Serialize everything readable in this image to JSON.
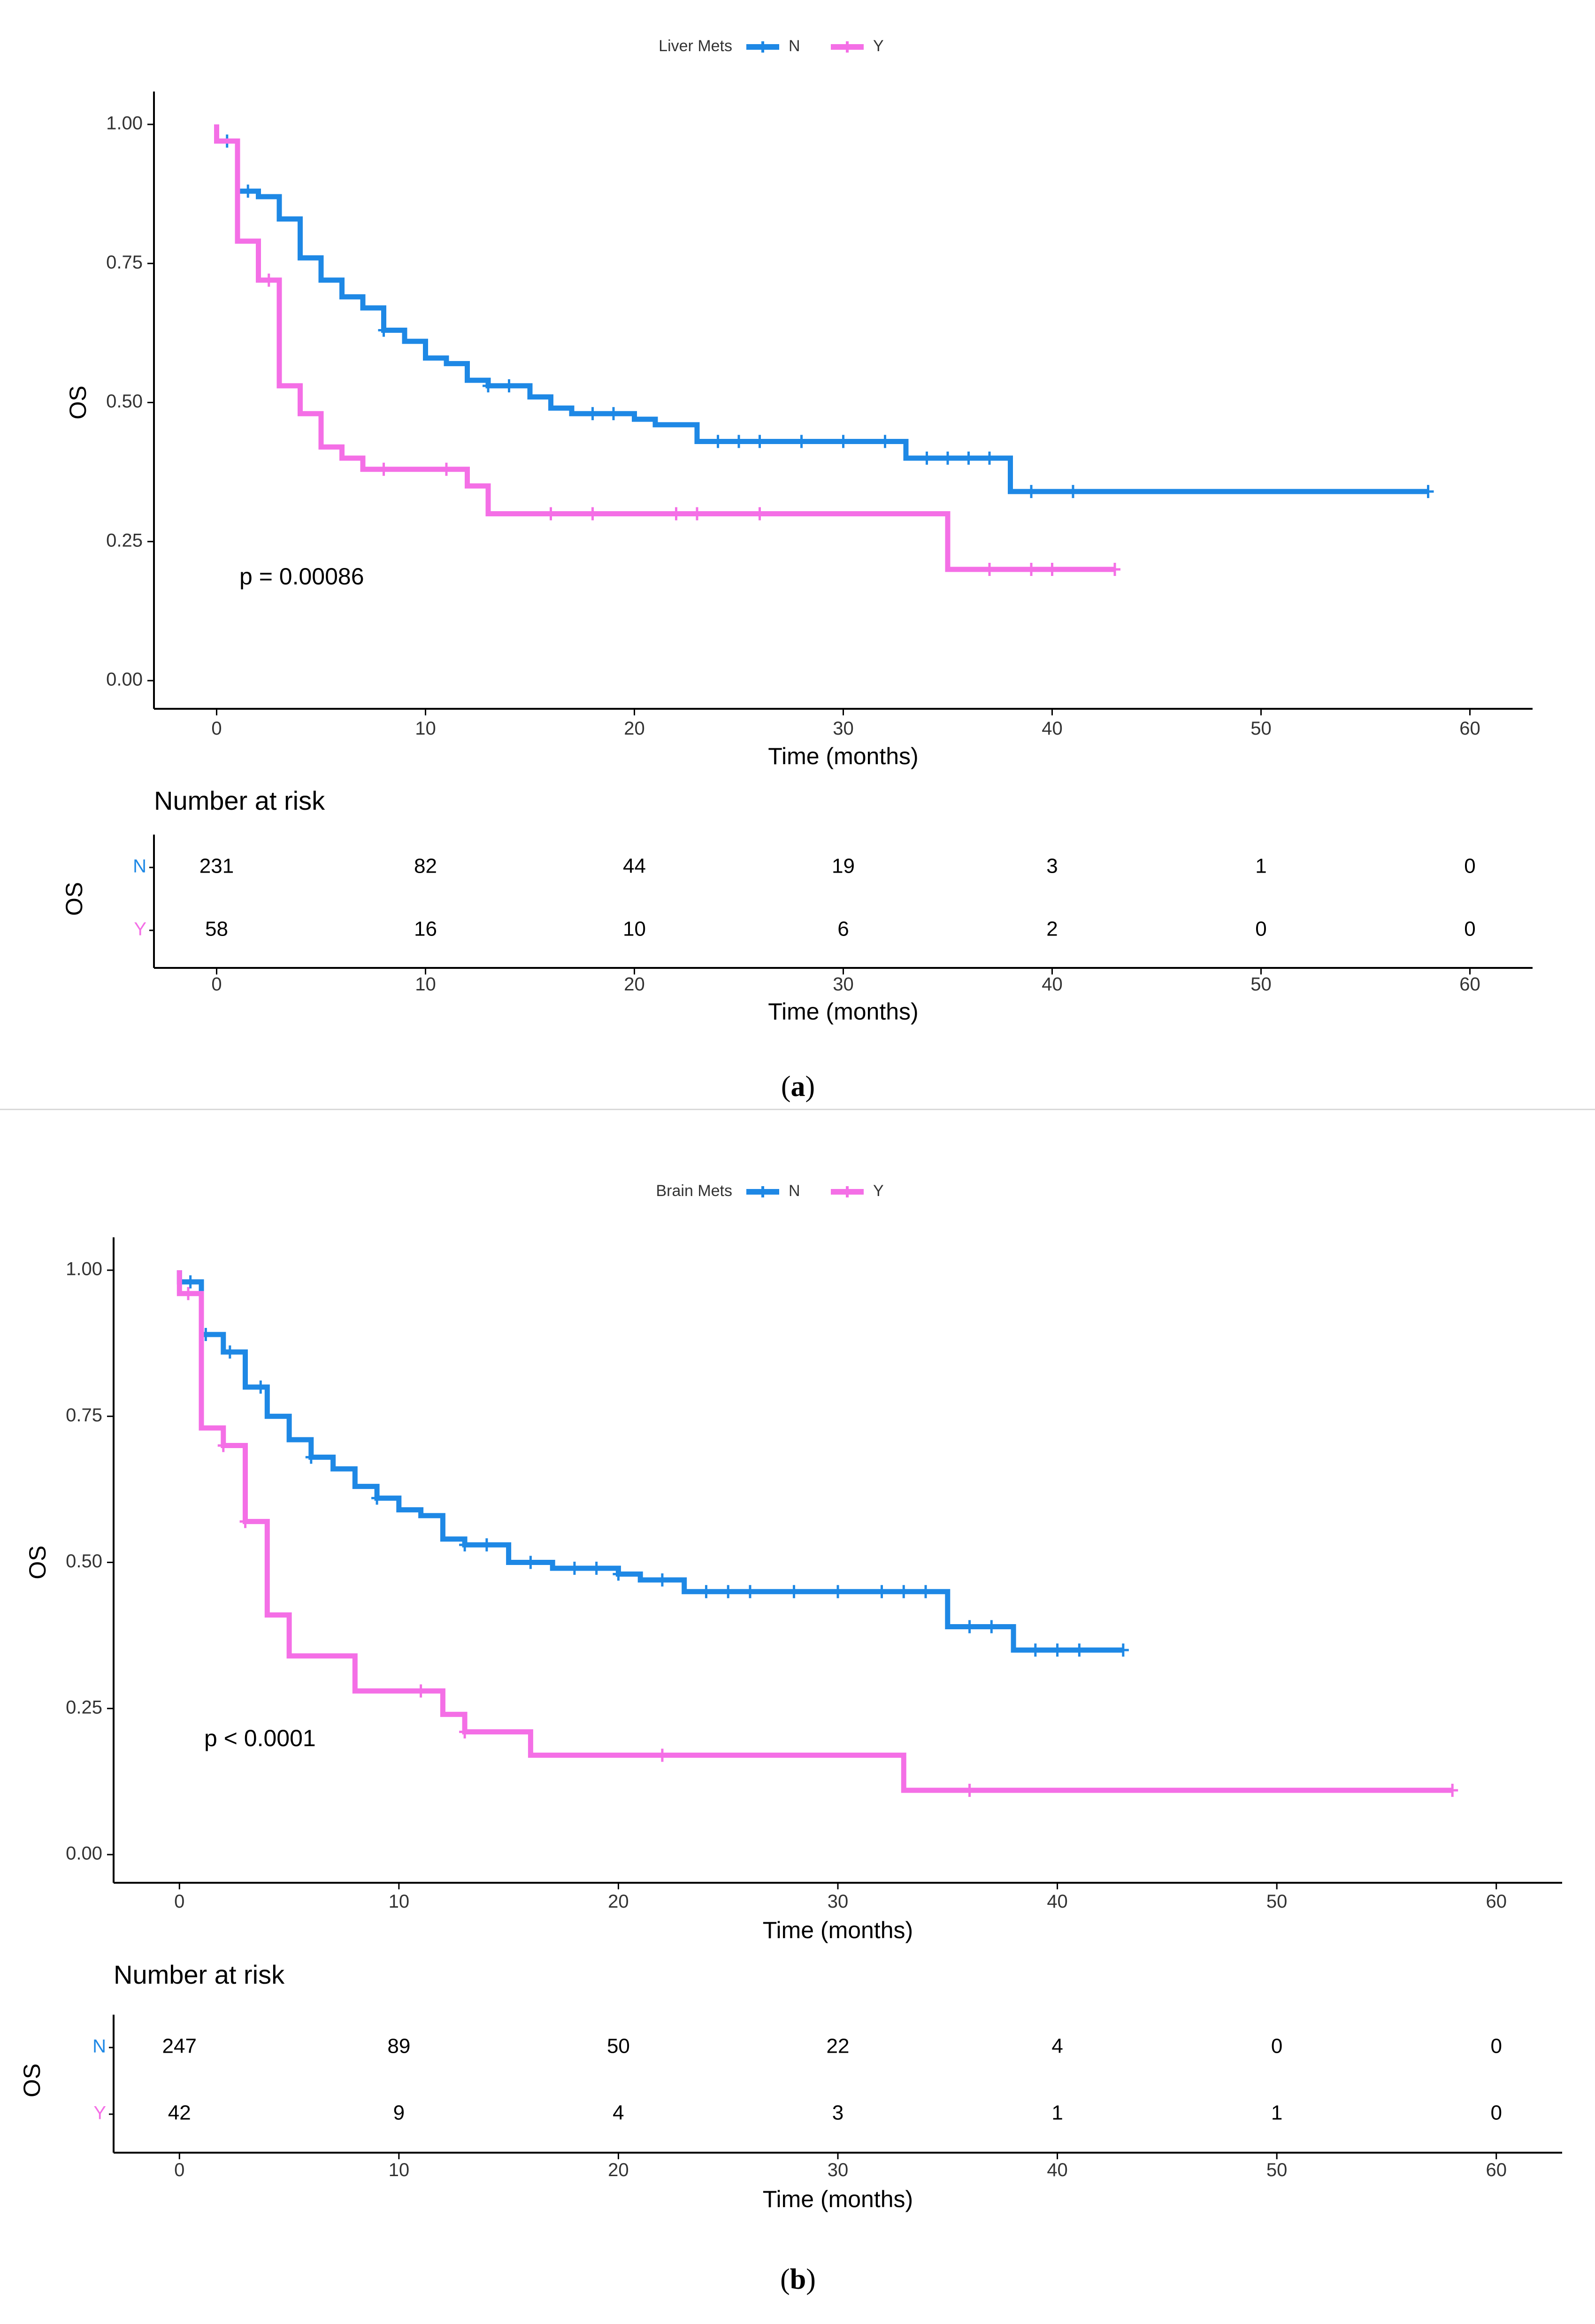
{
  "panels": [
    {
      "id": "a",
      "caption": "a",
      "legend": {
        "title": "Liver Mets",
        "items": [
          "N",
          "Y"
        ]
      },
      "p_value": "p = 0.00086",
      "risk_table": {
        "title": "Number at risk",
        "ylabel": "OS",
        "xlabel": "Time (months)",
        "rows": [
          {
            "strata": "N",
            "counts": [
              "231",
              "82",
              "44",
              "19",
              "3",
              "1",
              "0"
            ]
          },
          {
            "strata": "Y",
            "counts": [
              "58",
              "16",
              "10",
              "6",
              "2",
              "0",
              "0"
            ]
          }
        ]
      }
    },
    {
      "id": "b",
      "caption": "b",
      "legend": {
        "title": "Brain Mets",
        "items": [
          "N",
          "Y"
        ]
      },
      "p_value": "p < 0.0001",
      "risk_table": {
        "title": "Number at risk",
        "ylabel": "OS",
        "xlabel": "Time (months)",
        "rows": [
          {
            "strata": "N",
            "counts": [
              "247",
              "89",
              "50",
              "22",
              "4",
              "0",
              "0"
            ]
          },
          {
            "strata": "Y",
            "counts": [
              "42",
              "9",
              "4",
              "3",
              "1",
              "1",
              "0"
            ]
          }
        ]
      }
    }
  ],
  "colors": {
    "N": "#1e88e5",
    "Y": "#f46fe6",
    "axis": "#000000",
    "text": "#333333"
  },
  "chart_data": [
    {
      "type": "line",
      "subtype": "kaplan-meier",
      "title": "",
      "xlabel": "Time (months)",
      "ylabel": "OS",
      "xlim": [
        -3,
        63
      ],
      "ylim": [
        0,
        1
      ],
      "xticks": [
        0,
        10,
        20,
        30,
        40,
        50,
        60
      ],
      "yticks": [
        "0.00",
        "0.25",
        "0.50",
        "0.75",
        "1.00"
      ],
      "series": [
        {
          "name": "N",
          "steps": [
            [
              0,
              1.0
            ],
            [
              0,
              0.97
            ],
            [
              1,
              0.97
            ],
            [
              1,
              0.88
            ],
            [
              2,
              0.88
            ],
            [
              2,
              0.87
            ],
            [
              3,
              0.87
            ],
            [
              3,
              0.83
            ],
            [
              4,
              0.83
            ],
            [
              4,
              0.76
            ],
            [
              5,
              0.76
            ],
            [
              5,
              0.72
            ],
            [
              6,
              0.72
            ],
            [
              6,
              0.69
            ],
            [
              7,
              0.69
            ],
            [
              7,
              0.67
            ],
            [
              8,
              0.67
            ],
            [
              8,
              0.63
            ],
            [
              9,
              0.63
            ],
            [
              9,
              0.61
            ],
            [
              10,
              0.61
            ],
            [
              10,
              0.58
            ],
            [
              11,
              0.58
            ],
            [
              11,
              0.57
            ],
            [
              12,
              0.57
            ],
            [
              12,
              0.54
            ],
            [
              13,
              0.54
            ],
            [
              13,
              0.53
            ],
            [
              15,
              0.53
            ],
            [
              15,
              0.51
            ],
            [
              16,
              0.51
            ],
            [
              16,
              0.49
            ],
            [
              17,
              0.49
            ],
            [
              17,
              0.48
            ],
            [
              20,
              0.48
            ],
            [
              20,
              0.47
            ],
            [
              21,
              0.47
            ],
            [
              21,
              0.46
            ],
            [
              23,
              0.46
            ],
            [
              23,
              0.43
            ],
            [
              33,
              0.43
            ],
            [
              33,
              0.4
            ],
            [
              38,
              0.4
            ],
            [
              38,
              0.34
            ],
            [
              58,
              0.34
            ]
          ],
          "censor_x": [
            0.5,
            1.5,
            8,
            13,
            14,
            18,
            19,
            24,
            25,
            26,
            28,
            30,
            32,
            34,
            35,
            36,
            37,
            39,
            41,
            58
          ]
        },
        {
          "name": "Y",
          "steps": [
            [
              0,
              1.0
            ],
            [
              0,
              0.97
            ],
            [
              1,
              0.97
            ],
            [
              1,
              0.79
            ],
            [
              2,
              0.79
            ],
            [
              2,
              0.72
            ],
            [
              3,
              0.72
            ],
            [
              3,
              0.53
            ],
            [
              4,
              0.53
            ],
            [
              4,
              0.48
            ],
            [
              5,
              0.48
            ],
            [
              5,
              0.42
            ],
            [
              6,
              0.42
            ],
            [
              6,
              0.4
            ],
            [
              7,
              0.4
            ],
            [
              7,
              0.38
            ],
            [
              12,
              0.38
            ],
            [
              12,
              0.35
            ],
            [
              13,
              0.35
            ],
            [
              13,
              0.3
            ],
            [
              35,
              0.3
            ],
            [
              35,
              0.2
            ],
            [
              43,
              0.2
            ]
          ],
          "censor_x": [
            2.5,
            8,
            11,
            16,
            18,
            22,
            23,
            26,
            37,
            39,
            40,
            43
          ]
        }
      ],
      "annotation": "p = 0.00086",
      "legend_position": "top-center"
    },
    {
      "type": "line",
      "subtype": "kaplan-meier",
      "title": "",
      "xlabel": "Time (months)",
      "ylabel": "OS",
      "xlim": [
        -3,
        63
      ],
      "ylim": [
        0,
        1
      ],
      "xticks": [
        0,
        10,
        20,
        30,
        40,
        50,
        60
      ],
      "yticks": [
        "0.00",
        "0.25",
        "0.50",
        "0.75",
        "1.00"
      ],
      "series": [
        {
          "name": "N",
          "steps": [
            [
              0,
              1.0
            ],
            [
              0,
              0.98
            ],
            [
              1,
              0.98
            ],
            [
              1,
              0.89
            ],
            [
              2,
              0.89
            ],
            [
              2,
              0.86
            ],
            [
              3,
              0.86
            ],
            [
              3,
              0.8
            ],
            [
              4,
              0.8
            ],
            [
              4,
              0.75
            ],
            [
              5,
              0.75
            ],
            [
              5,
              0.71
            ],
            [
              6,
              0.71
            ],
            [
              6,
              0.68
            ],
            [
              7,
              0.68
            ],
            [
              7,
              0.66
            ],
            [
              8,
              0.66
            ],
            [
              8,
              0.63
            ],
            [
              9,
              0.63
            ],
            [
              9,
              0.61
            ],
            [
              10,
              0.61
            ],
            [
              10,
              0.59
            ],
            [
              11,
              0.59
            ],
            [
              11,
              0.58
            ],
            [
              12,
              0.58
            ],
            [
              12,
              0.54
            ],
            [
              13,
              0.54
            ],
            [
              13,
              0.53
            ],
            [
              15,
              0.53
            ],
            [
              15,
              0.5
            ],
            [
              17,
              0.5
            ],
            [
              17,
              0.49
            ],
            [
              20,
              0.49
            ],
            [
              20,
              0.48
            ],
            [
              21,
              0.48
            ],
            [
              21,
              0.47
            ],
            [
              23,
              0.47
            ],
            [
              23,
              0.45
            ],
            [
              35,
              0.45
            ],
            [
              35,
              0.39
            ],
            [
              38,
              0.39
            ],
            [
              38,
              0.35
            ],
            [
              43,
              0.35
            ]
          ],
          "censor_x": [
            0.5,
            1.2,
            2.3,
            3.7,
            6,
            9,
            13,
            14,
            16,
            18,
            19,
            20,
            22,
            24,
            25,
            26,
            28,
            30,
            32,
            33,
            34,
            36,
            37,
            39,
            40,
            41,
            43
          ]
        },
        {
          "name": "Y",
          "steps": [
            [
              0,
              1.0
            ],
            [
              0,
              0.96
            ],
            [
              1,
              0.96
            ],
            [
              1,
              0.73
            ],
            [
              2,
              0.73
            ],
            [
              2,
              0.7
            ],
            [
              3,
              0.7
            ],
            [
              3,
              0.57
            ],
            [
              4,
              0.57
            ],
            [
              4,
              0.41
            ],
            [
              5,
              0.41
            ],
            [
              5,
              0.34
            ],
            [
              8,
              0.34
            ],
            [
              8,
              0.28
            ],
            [
              12,
              0.28
            ],
            [
              12,
              0.24
            ],
            [
              13,
              0.24
            ],
            [
              13,
              0.21
            ],
            [
              16,
              0.21
            ],
            [
              16,
              0.17
            ],
            [
              33,
              0.17
            ],
            [
              33,
              0.11
            ],
            [
              58,
              0.11
            ]
          ],
          "censor_x": [
            0.4,
            2,
            3,
            11,
            13,
            22,
            36,
            58
          ]
        }
      ],
      "annotation": "p < 0.0001",
      "legend_position": "top-center"
    }
  ]
}
